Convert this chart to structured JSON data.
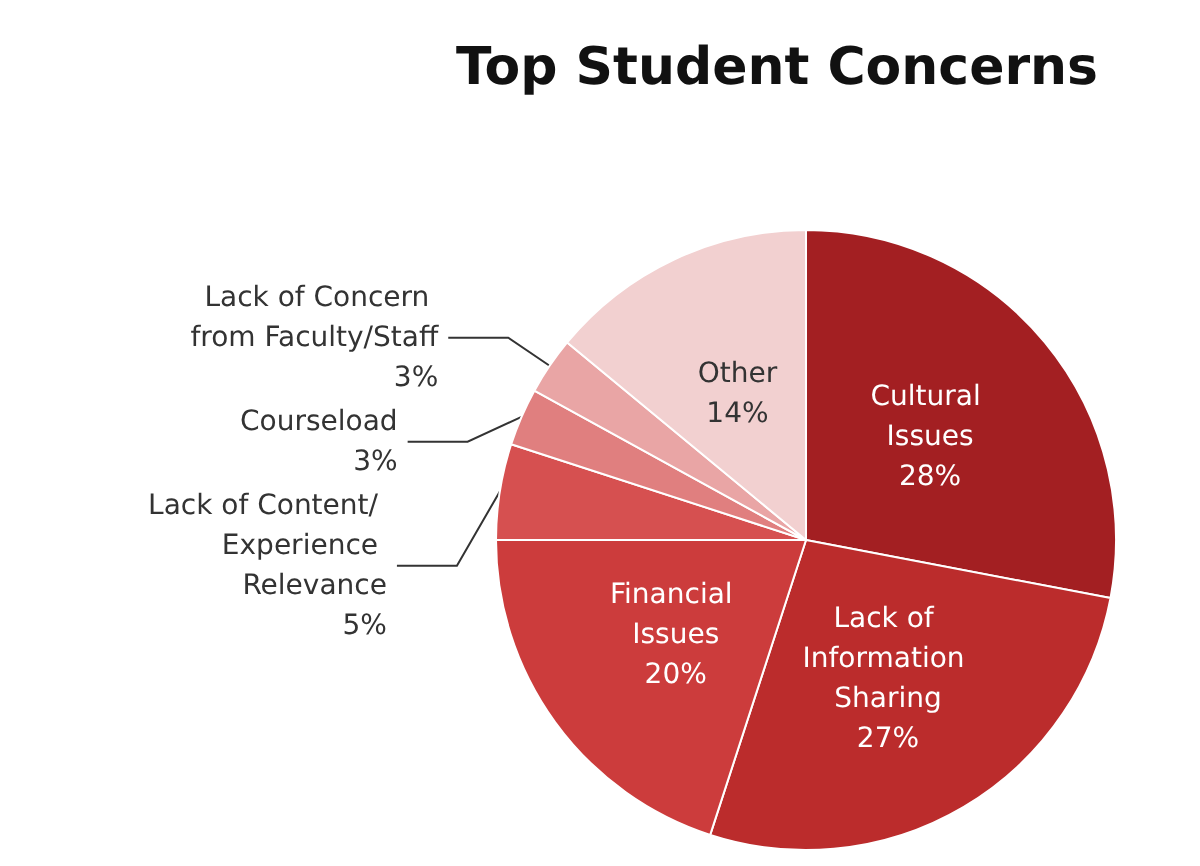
{
  "chart_data": {
    "type": "pie",
    "title": "Top Student Concerns",
    "categories": [
      "Cultural Issues",
      "Lack of Information Sharing",
      "Financial Issues",
      "Lack of Content/ Experience Relevance",
      "Courseload",
      "Lack of Concern from Faculty/Staff",
      "Other"
    ],
    "values": [
      28,
      27,
      20,
      5,
      3,
      3,
      14
    ],
    "colors": [
      "#a31f22",
      "#bb2c2c",
      "#cc3c3c",
      "#d65050",
      "#e07f7f",
      "#e9a5a5",
      "#f2d0d0"
    ],
    "value_labels": [
      "28%",
      "27%",
      "20%",
      "5%",
      "3%",
      "3%",
      "14%"
    ],
    "legend": false
  }
}
